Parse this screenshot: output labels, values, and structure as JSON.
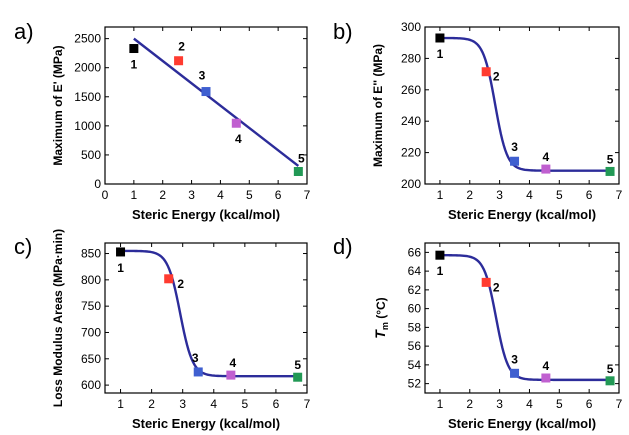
{
  "chart_data": [
    {
      "panel_label": "a)",
      "type": "scatter",
      "xlabel": "Steric Energy (kcal/mol)",
      "ylabel": "Maximum of E' (MPa)",
      "xlim": [
        0,
        7
      ],
      "ylim": [
        0,
        2700
      ],
      "xticks": [
        0,
        1,
        2,
        3,
        4,
        5,
        6,
        7
      ],
      "yticks": [
        0,
        500,
        1000,
        1500,
        2000,
        2500
      ],
      "points": [
        {
          "label": "1",
          "x": 1.0,
          "y": 2330,
          "color": "#000000"
        },
        {
          "label": "2",
          "x": 2.55,
          "y": 2120,
          "color": "#ff3b30"
        },
        {
          "label": "3",
          "x": 3.5,
          "y": 1590,
          "color": "#3f5fd0"
        },
        {
          "label": "4",
          "x": 4.55,
          "y": 1045,
          "color": "#c060d0"
        },
        {
          "label": "5",
          "x": 6.7,
          "y": 215,
          "color": "#229955"
        }
      ],
      "fit": {
        "kind": "linear",
        "x_start": 1.0,
        "x_end": 6.7,
        "y_start": 2500,
        "y_end": 310,
        "color": "#2c2c9a"
      }
    },
    {
      "panel_label": "b)",
      "type": "scatter",
      "xlabel": "Steric Energy (kcal/mol)",
      "ylabel": "Maximum of E'' (MPa)",
      "xlim": [
        0.5,
        7
      ],
      "ylim": [
        200,
        300
      ],
      "xticks": [
        1,
        2,
        3,
        4,
        5,
        6,
        7
      ],
      "yticks": [
        200,
        220,
        240,
        260,
        280,
        300
      ],
      "points": [
        {
          "label": "1",
          "x": 1.0,
          "y": 293,
          "color": "#000000"
        },
        {
          "label": "2",
          "x": 2.55,
          "y": 271.5,
          "color": "#ff3b30"
        },
        {
          "label": "3",
          "x": 3.5,
          "y": 214.5,
          "color": "#3f5fd0"
        },
        {
          "label": "4",
          "x": 4.55,
          "y": 209.5,
          "color": "#c060d0"
        },
        {
          "label": "5",
          "x": 6.7,
          "y": 208,
          "color": "#229955"
        }
      ],
      "fit": {
        "kind": "sigmoid",
        "upper": 293,
        "lower": 208.5,
        "x0": 2.85,
        "k": 5,
        "x_start": 1.0,
        "x_end": 6.7,
        "color": "#2c2c9a"
      }
    },
    {
      "panel_label": "c)",
      "type": "scatter",
      "xlabel": "Steric Energy (kcal/mol)",
      "ylabel": "Loss Modulus Areas (MPa·min)",
      "xlim": [
        0.5,
        7
      ],
      "ylim": [
        585,
        870
      ],
      "xticks": [
        1,
        2,
        3,
        4,
        5,
        6,
        7
      ],
      "yticks": [
        600,
        650,
        700,
        750,
        800,
        850
      ],
      "points": [
        {
          "label": "1",
          "x": 1.0,
          "y": 853,
          "color": "#000000"
        },
        {
          "label": "2",
          "x": 2.55,
          "y": 802,
          "color": "#ff3b30"
        },
        {
          "label": "3",
          "x": 3.5,
          "y": 625,
          "color": "#3f5fd0"
        },
        {
          "label": "4",
          "x": 4.55,
          "y": 619,
          "color": "#c060d0"
        },
        {
          "label": "5",
          "x": 6.7,
          "y": 615,
          "color": "#229955"
        }
      ],
      "fit": {
        "kind": "sigmoid",
        "upper": 855,
        "lower": 617,
        "x0": 2.92,
        "k": 5,
        "x_start": 1.0,
        "x_end": 6.7,
        "color": "#2c2c9a"
      }
    },
    {
      "panel_label": "d)",
      "type": "scatter",
      "xlabel": "Steric Energy (kcal/mol)",
      "ylabel_main": "T",
      "ylabel_sub": "m",
      "ylabel_rest": " (°C)",
      "xlim": [
        0.5,
        7
      ],
      "ylim": [
        51,
        67
      ],
      "xticks": [
        1,
        2,
        3,
        4,
        5,
        6,
        7
      ],
      "yticks": [
        52,
        54,
        56,
        58,
        60,
        62,
        64,
        66
      ],
      "points": [
        {
          "label": "1",
          "x": 1.0,
          "y": 65.7,
          "color": "#000000"
        },
        {
          "label": "2",
          "x": 2.55,
          "y": 62.8,
          "color": "#ff3b30"
        },
        {
          "label": "3",
          "x": 3.5,
          "y": 53.1,
          "color": "#3f5fd0"
        },
        {
          "label": "4",
          "x": 4.55,
          "y": 52.6,
          "color": "#c060d0"
        },
        {
          "label": "5",
          "x": 6.7,
          "y": 52.3,
          "color": "#229955"
        }
      ],
      "fit": {
        "kind": "sigmoid",
        "upper": 65.7,
        "lower": 52.4,
        "x0": 2.88,
        "k": 5,
        "x_start": 1.0,
        "x_end": 6.7,
        "color": "#2c2c9a"
      }
    }
  ]
}
